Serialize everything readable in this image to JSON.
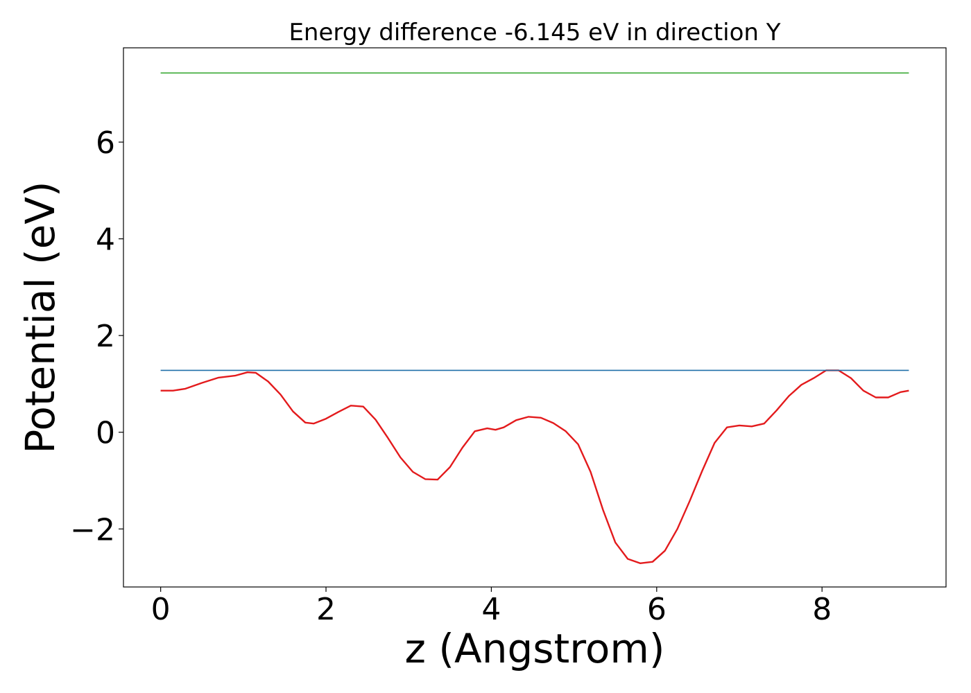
{
  "chart_data": {
    "type": "line",
    "title": "Energy difference -6.145 eV in direction Y",
    "xlabel": "z (Angstrom)",
    "ylabel": "Potential (eV)",
    "xlim": [
      -0.45,
      9.5
    ],
    "ylim": [
      -3.2,
      7.95
    ],
    "xticks": [
      0,
      2,
      4,
      6,
      8
    ],
    "xtick_labels": [
      "0",
      "2",
      "4",
      "6",
      "8"
    ],
    "yticks": [
      -2,
      0,
      2,
      4,
      6
    ],
    "ytick_labels": [
      "−2",
      "0",
      "2",
      "4",
      "6"
    ],
    "grid": false,
    "legend": "none",
    "series": [
      {
        "color": "#e31a1c",
        "x": [
          0,
          0.15,
          0.3,
          0.5,
          0.7,
          0.9,
          1.05,
          1.15,
          1.3,
          1.45,
          1.6,
          1.75,
          1.85,
          2.0,
          2.15,
          2.3,
          2.45,
          2.6,
          2.75,
          2.9,
          3.05,
          3.2,
          3.35,
          3.5,
          3.65,
          3.8,
          3.95,
          4.05,
          4.15,
          4.3,
          4.45,
          4.6,
          4.75,
          4.9,
          5.05,
          5.2,
          5.35,
          5.5,
          5.65,
          5.8,
          5.95,
          6.1,
          6.25,
          6.4,
          6.55,
          6.7,
          6.85,
          7.0,
          7.15,
          7.3,
          7.45,
          7.6,
          7.75,
          7.9,
          8.05,
          8.2,
          8.35,
          8.5,
          8.65,
          8.8,
          8.95,
          9.05
        ],
        "y": [
          0.86,
          0.86,
          0.9,
          1.02,
          1.13,
          1.17,
          1.24,
          1.23,
          1.05,
          0.78,
          0.43,
          0.2,
          0.18,
          0.28,
          0.42,
          0.55,
          0.53,
          0.26,
          -0.12,
          -0.52,
          -0.82,
          -0.97,
          -0.98,
          -0.72,
          -0.32,
          0.02,
          0.08,
          0.05,
          0.1,
          0.25,
          0.32,
          0.3,
          0.19,
          0.02,
          -0.25,
          -0.82,
          -1.6,
          -2.28,
          -2.62,
          -2.71,
          -2.68,
          -2.45,
          -2.0,
          -1.42,
          -0.8,
          -0.22,
          0.1,
          0.14,
          0.12,
          0.18,
          0.45,
          0.75,
          0.98,
          1.12,
          1.28,
          1.28,
          1.12,
          0.86,
          0.72,
          0.72,
          0.83,
          0.86
        ]
      },
      {
        "color": "#1f6fa8",
        "x": [
          0,
          9.05
        ],
        "y": [
          1.28,
          1.28
        ]
      },
      {
        "color": "#3aaa35",
        "x": [
          0,
          9.05
        ],
        "y": [
          7.43,
          7.43
        ]
      }
    ]
  }
}
